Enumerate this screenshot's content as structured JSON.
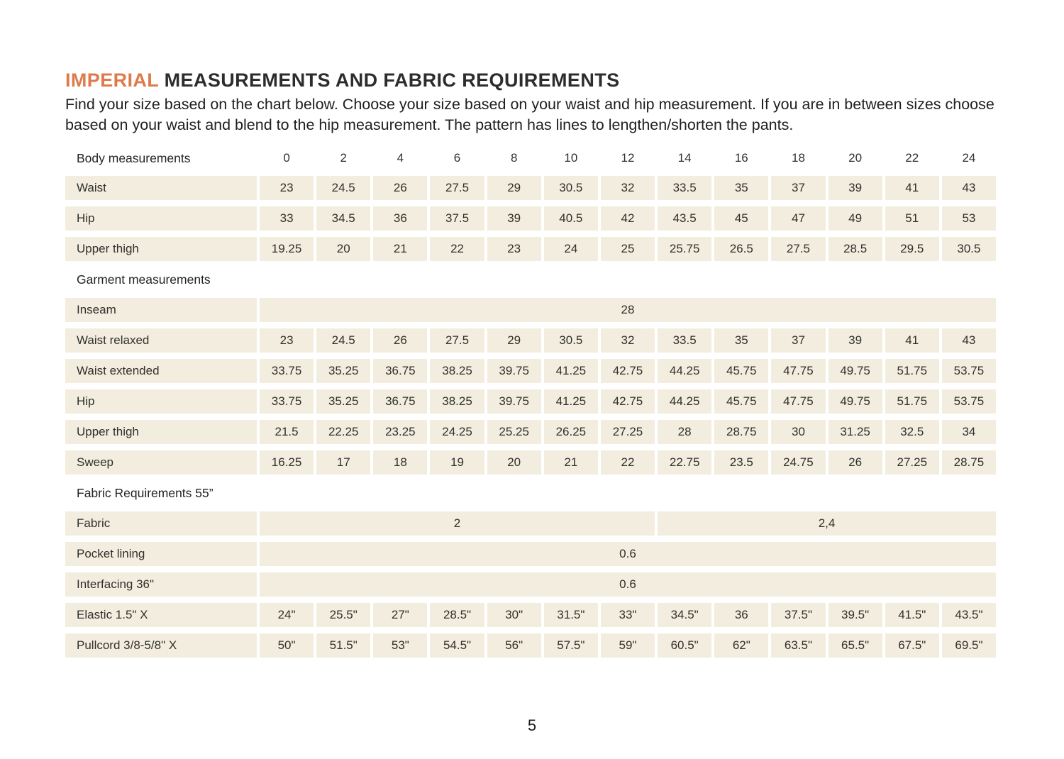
{
  "header": {
    "title_accent": "IMPERIAL",
    "title_rest": " MEASUREMENTS AND FABRIC REQUIREMENTS",
    "intro": "Find your size based on the chart below. Choose your size based on your waist and hip measurement. If you are in between sizes choose based on your waist and blend to the hip measurement. The pattern has lines to lengthen/shorten the pants."
  },
  "colors": {
    "accent_orange": "#DE7B4C",
    "cell_background": "#F2EDDE",
    "text": "#31302C"
  },
  "table": {
    "sizes": [
      "0",
      "2",
      "4",
      "6",
      "8",
      "10",
      "12",
      "14",
      "16",
      "18",
      "20",
      "22",
      "24"
    ],
    "sections": [
      {
        "heading": "Body measurements",
        "show_sizes": true,
        "rows": [
          {
            "label": "Waist",
            "values": [
              "23",
              "24.5",
              "26",
              "27.5",
              "29",
              "30.5",
              "32",
              "33.5",
              "35",
              "37",
              "39",
              "41",
              "43"
            ]
          },
          {
            "label": "Hip",
            "values": [
              "33",
              "34.5",
              "36",
              "37.5",
              "39",
              "40.5",
              "42",
              "43.5",
              "45",
              "47",
              "49",
              "51",
              "53"
            ]
          },
          {
            "label": "Upper thigh",
            "values": [
              "19.25",
              "20",
              "21",
              "22",
              "23",
              "24",
              "25",
              "25.75",
              "26.5",
              "27.5",
              "28.5",
              "29.5",
              "30.5"
            ]
          }
        ]
      },
      {
        "heading": "Garment measurements",
        "show_sizes": false,
        "rows": [
          {
            "label": "Inseam",
            "spans": [
              {
                "cols": 13,
                "value": "28"
              }
            ]
          },
          {
            "label": "Waist relaxed",
            "values": [
              "23",
              "24.5",
              "26",
              "27.5",
              "29",
              "30.5",
              "32",
              "33.5",
              "35",
              "37",
              "39",
              "41",
              "43"
            ]
          },
          {
            "label": "Waist extended",
            "values": [
              "33.75",
              "35.25",
              "36.75",
              "38.25",
              "39.75",
              "41.25",
              "42.75",
              "44.25",
              "45.75",
              "47.75",
              "49.75",
              "51.75",
              "53.75"
            ]
          },
          {
            "label": "Hip",
            "values": [
              "33.75",
              "35.25",
              "36.75",
              "38.25",
              "39.75",
              "41.25",
              "42.75",
              "44.25",
              "45.75",
              "47.75",
              "49.75",
              "51.75",
              "53.75"
            ]
          },
          {
            "label": "Upper thigh",
            "values": [
              "21.5",
              "22.25",
              "23.25",
              "24.25",
              "25.25",
              "26.25",
              "27.25",
              "28",
              "28.75",
              "30",
              "31.25",
              "32.5",
              "34"
            ]
          },
          {
            "label": "Sweep",
            "values": [
              "16.25",
              "17",
              "18",
              "19",
              "20",
              "21",
              "22",
              "22.75",
              "23.5",
              "24.75",
              "26",
              "27.25",
              "28.75"
            ]
          }
        ]
      },
      {
        "heading": "Fabric Requirements 55”",
        "show_sizes": false,
        "rows": [
          {
            "label": "Fabric",
            "spans": [
              {
                "cols": 7,
                "value": "2"
              },
              {
                "cols": 6,
                "value": "2,4"
              }
            ]
          },
          {
            "label": "Pocket lining",
            "spans": [
              {
                "cols": 13,
                "value": "0.6"
              }
            ]
          },
          {
            "label": "Interfacing 36\"",
            "spans": [
              {
                "cols": 13,
                "value": "0.6"
              }
            ]
          },
          {
            "label": "Elastic  1.5\" X",
            "values": [
              "24\"",
              "25.5\"",
              "27\"",
              "28.5\"",
              "30\"",
              "31.5\"",
              "33\"",
              "34.5\"",
              "36",
              "37.5\"",
              "39.5\"",
              "41.5\"",
              "43.5\""
            ]
          },
          {
            "label": "Pullcord 3/8-5/8\" X",
            "values": [
              "50\"",
              "51.5\"",
              "53\"",
              "54.5\"",
              "56\"",
              "57.5\"",
              "59\"",
              "60.5\"",
              "62\"",
              "63.5\"",
              "65.5\"",
              "67.5\"",
              "69.5\""
            ]
          }
        ]
      }
    ]
  },
  "footer": {
    "page_number": "5"
  }
}
